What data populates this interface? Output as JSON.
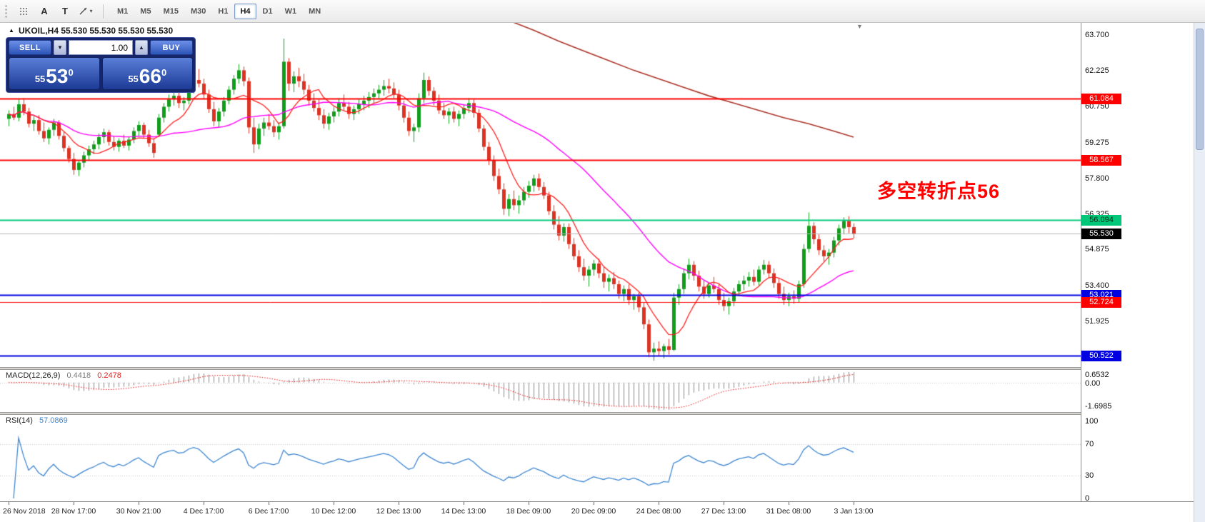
{
  "toolbar": {
    "tools": {
      "a": "A",
      "t": "T"
    },
    "timeframes": [
      "M1",
      "M5",
      "M15",
      "M30",
      "H1",
      "H4",
      "D1",
      "W1",
      "MN"
    ],
    "active_timeframe": "H4"
  },
  "chart_header": {
    "ohlc_line": "UKOIL,H4 55.530 55.530 55.530 55.530"
  },
  "one_click": {
    "sell_label": "SELL",
    "buy_label": "BUY",
    "volume": "1.00",
    "sell_price": {
      "small": "55",
      "big": "53",
      "sup": "0"
    },
    "buy_price": {
      "small": "55",
      "big": "66",
      "sup": "0"
    }
  },
  "annotation": {
    "text": "多空转折点56",
    "color": "#ff0000"
  },
  "macd": {
    "label": "MACD(12,26,9)",
    "value_main": "0.4418",
    "value_signal": "0.2478",
    "axis_max": "0.6532",
    "axis_zero": "0.00",
    "axis_min": "-1.6985"
  },
  "rsi": {
    "label": "RSI(14)",
    "value": "57.0869",
    "levels": [
      "100",
      "70",
      "30",
      "0"
    ]
  },
  "chart_data": {
    "type": "candlestick",
    "symbol": "UKOIL",
    "timeframe": "H4",
    "last_price": 55.53,
    "ylim": [
      50.0,
      64.25
    ],
    "price_ticks": [
      "63.700",
      "62.225",
      "60.750",
      "59.275",
      "57.800",
      "56.325",
      "54.875",
      "53.400",
      "51.925",
      "50.450"
    ],
    "levels": [
      {
        "label": "61.084",
        "type": "red",
        "lw": 2
      },
      {
        "label": "58.567",
        "type": "red",
        "lw": 2
      },
      {
        "label": "56.094",
        "type": "green",
        "lw": 2
      },
      {
        "label": "55.530",
        "type": "bid",
        "lw": 1
      },
      {
        "label": "53.021",
        "type": "blue",
        "lw": 2
      },
      {
        "label": "52.724",
        "type": "red",
        "lw": 1
      },
      {
        "label": "50.522",
        "type": "blue",
        "lw": 2
      }
    ],
    "level_colors": {
      "red": "#ff0000",
      "green": "#00c878",
      "blue": "#0000e0",
      "bid": "#b4b4b4"
    },
    "time_labels": [
      "26 Nov 2018",
      "28 Nov 17:00",
      "30 Nov 21:00",
      "4 Dec 17:00",
      "6 Dec 17:00",
      "10 Dec 12:00",
      "12 Dec 13:00",
      "14 Dec 13:00",
      "18 Dec 09:00",
      "20 Dec 09:00",
      "24 Dec 08:00",
      "27 Dec 13:00",
      "31 Dec 08:00",
      "3 Jan 13:00"
    ],
    "ma": {
      "fast_period": 8,
      "slow_period": 34,
      "long_anchors": [
        [
          100,
          64.3
        ],
        [
          105,
          63.9
        ],
        [
          110,
          63.45
        ],
        [
          115,
          63.05
        ],
        [
          120,
          62.65
        ],
        [
          125,
          62.25
        ],
        [
          130,
          61.9
        ],
        [
          135,
          61.55
        ],
        [
          140,
          61.2
        ],
        [
          145,
          60.9
        ],
        [
          150,
          60.6
        ],
        [
          155,
          60.3
        ],
        [
          160,
          60.05
        ],
        [
          165,
          59.75
        ],
        [
          169,
          59.5
        ]
      ]
    },
    "colors": {
      "bull": "#0f9d1a",
      "bear": "#dd3222",
      "ma_fast": "#ff2020",
      "ma_slow": "#ff00ff",
      "ma_long": "#a93226",
      "macd_hist": "#8a8a8a",
      "macd_signal": "#ee1111",
      "rsi": "#3e86d0"
    },
    "ohlc": [
      [
        60.25,
        60.6,
        59.95,
        60.45
      ],
      [
        60.45,
        60.75,
        60.2,
        60.3
      ],
      [
        60.3,
        61.05,
        60.15,
        60.85
      ],
      [
        60.85,
        61.1,
        60.4,
        60.55
      ],
      [
        60.55,
        60.7,
        59.9,
        60.05
      ],
      [
        60.05,
        60.35,
        59.75,
        60.2
      ],
      [
        60.2,
        60.4,
        59.6,
        59.75
      ],
      [
        59.75,
        60.1,
        59.3,
        59.45
      ],
      [
        59.45,
        59.9,
        59.2,
        59.8
      ],
      [
        59.8,
        60.25,
        59.55,
        60.1
      ],
      [
        60.1,
        60.2,
        59.4,
        59.55
      ],
      [
        59.55,
        59.7,
        58.9,
        59.05
      ],
      [
        59.05,
        59.15,
        58.45,
        58.6
      ],
      [
        58.6,
        58.85,
        57.95,
        58.15
      ],
      [
        58.15,
        58.55,
        57.9,
        58.45
      ],
      [
        58.45,
        58.9,
        58.25,
        58.75
      ],
      [
        58.75,
        59.15,
        58.55,
        59.0
      ],
      [
        59.0,
        59.35,
        58.8,
        59.2
      ],
      [
        59.2,
        59.65,
        59.0,
        59.5
      ],
      [
        59.5,
        59.85,
        59.25,
        59.7
      ],
      [
        59.7,
        59.8,
        59.15,
        59.3
      ],
      [
        59.3,
        59.55,
        58.95,
        59.1
      ],
      [
        59.1,
        59.45,
        58.9,
        59.35
      ],
      [
        59.35,
        59.6,
        59.05,
        59.15
      ],
      [
        59.15,
        59.5,
        58.95,
        59.4
      ],
      [
        59.4,
        59.9,
        59.25,
        59.75
      ],
      [
        59.75,
        60.15,
        59.55,
        60.0
      ],
      [
        60.0,
        60.1,
        59.45,
        59.6
      ],
      [
        59.6,
        59.8,
        59.1,
        59.25
      ],
      [
        59.25,
        59.45,
        58.65,
        58.85
      ],
      [
        59.6,
        60.45,
        59.5,
        60.3
      ],
      [
        60.3,
        60.9,
        60.1,
        60.75
      ],
      [
        60.75,
        61.25,
        60.55,
        61.05
      ],
      [
        61.05,
        61.4,
        60.8,
        61.2
      ],
      [
        61.2,
        61.35,
        60.7,
        60.9
      ],
      [
        60.9,
        61.15,
        60.6,
        61.0
      ],
      [
        61.0,
        61.75,
        60.85,
        61.55
      ],
      [
        61.55,
        62.1,
        61.3,
        61.85
      ],
      [
        61.85,
        62.3,
        61.55,
        61.7
      ],
      [
        61.7,
        61.9,
        61.05,
        61.25
      ],
      [
        61.25,
        61.45,
        60.5,
        60.65
      ],
      [
        60.65,
        60.95,
        59.95,
        60.15
      ],
      [
        60.15,
        60.7,
        59.9,
        60.55
      ],
      [
        60.55,
        61.15,
        60.35,
        61.0
      ],
      [
        61.0,
        61.6,
        60.85,
        61.45
      ],
      [
        61.45,
        62.05,
        61.25,
        61.9
      ],
      [
        61.9,
        62.5,
        61.7,
        62.25
      ],
      [
        62.25,
        62.4,
        61.6,
        61.8
      ],
      [
        61.8,
        61.95,
        59.65,
        59.9
      ],
      [
        59.9,
        60.3,
        58.85,
        59.2
      ],
      [
        59.2,
        60.05,
        59.0,
        59.85
      ],
      [
        59.85,
        60.3,
        59.55,
        60.1
      ],
      [
        60.1,
        60.45,
        59.8,
        59.95
      ],
      [
        59.95,
        60.2,
        59.5,
        59.7
      ],
      [
        59.7,
        60.1,
        59.4,
        59.95
      ],
      [
        59.95,
        63.55,
        59.85,
        62.6
      ],
      [
        62.6,
        62.75,
        61.4,
        61.7
      ],
      [
        61.7,
        62.2,
        61.35,
        62.0
      ],
      [
        62.0,
        62.35,
        61.55,
        61.8
      ],
      [
        61.8,
        62.1,
        61.25,
        61.45
      ],
      [
        61.45,
        61.65,
        60.8,
        61.0
      ],
      [
        61.0,
        61.3,
        60.55,
        60.7
      ],
      [
        60.7,
        61.05,
        60.2,
        60.4
      ],
      [
        60.4,
        60.65,
        59.85,
        60.05
      ],
      [
        60.05,
        60.5,
        59.8,
        60.35
      ],
      [
        60.35,
        60.75,
        60.1,
        60.55
      ],
      [
        60.55,
        61.1,
        60.35,
        60.9
      ],
      [
        60.9,
        61.25,
        60.6,
        60.75
      ],
      [
        60.75,
        60.95,
        60.25,
        60.45
      ],
      [
        60.45,
        60.8,
        60.2,
        60.65
      ],
      [
        60.65,
        61.05,
        60.45,
        60.85
      ],
      [
        60.85,
        61.2,
        60.6,
        61.0
      ],
      [
        61.0,
        61.35,
        60.7,
        61.15
      ],
      [
        61.15,
        61.5,
        60.9,
        61.3
      ],
      [
        61.3,
        61.65,
        61.05,
        61.45
      ],
      [
        61.45,
        61.85,
        61.2,
        61.6
      ],
      [
        61.6,
        61.9,
        61.3,
        61.5
      ],
      [
        61.5,
        61.75,
        61.1,
        61.25
      ],
      [
        61.25,
        61.45,
        60.6,
        60.8
      ],
      [
        60.8,
        61.0,
        60.1,
        60.3
      ],
      [
        60.3,
        60.55,
        59.55,
        59.75
      ],
      [
        59.75,
        60.05,
        59.3,
        59.9
      ],
      [
        59.9,
        61.3,
        59.7,
        61.1
      ],
      [
        61.1,
        62.15,
        60.9,
        61.85
      ],
      [
        61.85,
        62.0,
        61.2,
        61.4
      ],
      [
        61.4,
        61.55,
        60.8,
        61.0
      ],
      [
        61.0,
        61.25,
        60.45,
        60.6
      ],
      [
        60.6,
        60.9,
        60.25,
        60.4
      ],
      [
        60.4,
        60.7,
        60.05,
        60.55
      ],
      [
        60.55,
        60.75,
        60.1,
        60.25
      ],
      [
        60.25,
        60.6,
        59.95,
        60.45
      ],
      [
        60.45,
        60.85,
        60.25,
        60.7
      ],
      [
        60.7,
        61.1,
        60.5,
        60.9
      ],
      [
        60.9,
        61.05,
        60.3,
        60.5
      ],
      [
        60.5,
        60.65,
        59.7,
        59.85
      ],
      [
        59.85,
        60.0,
        58.95,
        59.1
      ],
      [
        59.1,
        59.3,
        58.35,
        58.55
      ],
      [
        58.55,
        58.75,
        57.7,
        57.9
      ],
      [
        57.9,
        58.2,
        57.15,
        57.35
      ],
      [
        57.35,
        57.6,
        56.3,
        56.55
      ],
      [
        56.55,
        57.15,
        56.25,
        56.95
      ],
      [
        56.95,
        57.3,
        56.5,
        56.7
      ],
      [
        56.7,
        57.1,
        56.35,
        56.9
      ],
      [
        56.9,
        57.45,
        56.7,
        57.25
      ],
      [
        57.25,
        57.7,
        57.0,
        57.5
      ],
      [
        57.5,
        57.95,
        57.25,
        57.8
      ],
      [
        57.8,
        58.0,
        57.3,
        57.45
      ],
      [
        57.45,
        57.65,
        56.95,
        57.1
      ],
      [
        57.1,
        57.25,
        56.3,
        56.45
      ],
      [
        56.45,
        56.7,
        55.7,
        55.9
      ],
      [
        55.9,
        56.25,
        55.25,
        55.45
      ],
      [
        55.45,
        55.95,
        55.2,
        55.8
      ],
      [
        55.8,
        55.95,
        54.9,
        55.1
      ],
      [
        55.1,
        55.35,
        54.45,
        54.6
      ],
      [
        54.6,
        54.85,
        53.95,
        54.15
      ],
      [
        54.15,
        54.5,
        53.6,
        53.8
      ],
      [
        53.8,
        54.2,
        53.35,
        54.05
      ],
      [
        54.05,
        54.45,
        53.8,
        54.3
      ],
      [
        54.3,
        54.5,
        53.7,
        53.9
      ],
      [
        53.9,
        54.15,
        53.3,
        53.55
      ],
      [
        53.55,
        53.85,
        53.15,
        53.7
      ],
      [
        53.7,
        53.95,
        53.25,
        53.45
      ],
      [
        53.45,
        53.6,
        52.85,
        53.05
      ],
      [
        53.05,
        53.4,
        52.75,
        53.25
      ],
      [
        53.25,
        53.45,
        52.6,
        52.8
      ],
      [
        52.8,
        53.05,
        52.4,
        52.95
      ],
      [
        52.95,
        53.1,
        52.3,
        52.5
      ],
      [
        52.5,
        52.7,
        51.6,
        51.8
      ],
      [
        51.8,
        52.0,
        50.45,
        50.65
      ],
      [
        50.65,
        51.05,
        50.3,
        50.8
      ],
      [
        50.8,
        51.1,
        50.5,
        50.7
      ],
      [
        50.7,
        51.0,
        50.4,
        50.9
      ],
      [
        50.9,
        51.2,
        50.55,
        50.75
      ],
      [
        50.75,
        53.1,
        50.7,
        52.9
      ],
      [
        52.9,
        53.45,
        52.6,
        53.25
      ],
      [
        53.25,
        54.1,
        53.05,
        53.9
      ],
      [
        53.9,
        54.5,
        53.65,
        54.25
      ],
      [
        54.25,
        54.4,
        53.6,
        53.8
      ],
      [
        53.8,
        54.0,
        53.15,
        53.35
      ],
      [
        53.35,
        53.6,
        52.85,
        53.05
      ],
      [
        53.05,
        53.5,
        52.9,
        53.4
      ],
      [
        53.4,
        53.75,
        53.1,
        53.25
      ],
      [
        53.25,
        53.45,
        52.6,
        52.8
      ],
      [
        52.8,
        53.1,
        52.35,
        52.55
      ],
      [
        52.55,
        52.9,
        52.2,
        52.75
      ],
      [
        52.75,
        53.3,
        52.55,
        53.15
      ],
      [
        53.15,
        53.6,
        52.95,
        53.45
      ],
      [
        53.45,
        53.8,
        53.2,
        53.6
      ],
      [
        53.6,
        53.95,
        53.35,
        53.75
      ],
      [
        53.75,
        54.05,
        53.4,
        53.55
      ],
      [
        53.55,
        54.2,
        53.4,
        54.05
      ],
      [
        54.05,
        54.45,
        53.85,
        54.25
      ],
      [
        54.25,
        54.4,
        53.7,
        53.9
      ],
      [
        53.9,
        54.1,
        53.3,
        53.5
      ],
      [
        53.5,
        53.7,
        52.85,
        53.05
      ],
      [
        53.05,
        53.35,
        52.6,
        52.8
      ],
      [
        52.8,
        53.1,
        52.55,
        52.95
      ],
      [
        52.95,
        53.2,
        52.65,
        52.85
      ],
      [
        52.85,
        53.6,
        52.7,
        53.45
      ],
      [
        53.45,
        55.1,
        53.3,
        54.9
      ],
      [
        54.9,
        56.4,
        54.75,
        55.85
      ],
      [
        55.85,
        56.0,
        55.1,
        55.3
      ],
      [
        55.3,
        55.5,
        54.65,
        54.85
      ],
      [
        54.85,
        55.05,
        54.4,
        54.6
      ],
      [
        54.6,
        54.9,
        54.25,
        54.75
      ],
      [
        54.75,
        55.4,
        54.55,
        55.25
      ],
      [
        55.25,
        55.9,
        55.05,
        55.75
      ],
      [
        55.75,
        56.2,
        55.5,
        56.05
      ],
      [
        56.05,
        56.25,
        55.55,
        55.8
      ],
      [
        55.8,
        55.95,
        55.35,
        55.53
      ]
    ]
  }
}
